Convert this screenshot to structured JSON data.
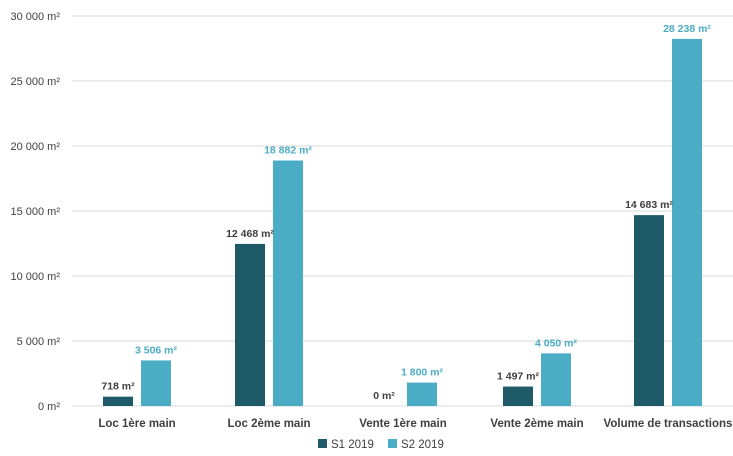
{
  "chart_data": {
    "type": "bar",
    "categories": [
      "Loc 1ère main",
      "Loc 2ème main",
      "Vente 1ère main",
      "Vente 2ème main",
      "Volume de transactions"
    ],
    "series": [
      {
        "name": "S1 2019",
        "values": [
          718,
          12468,
          0,
          1497,
          14683
        ],
        "labels": [
          "718 m²",
          "12 468 m²",
          "0 m²",
          "1 497 m²",
          "14 683 m²"
        ],
        "color": "#1f5a68"
      },
      {
        "name": "S2 2019",
        "values": [
          3506,
          18882,
          1800,
          4050,
          28238
        ],
        "labels": [
          "3 506 m²",
          "18 882 m²",
          "1 800 m²",
          "4 050 m²",
          "28 238 m²"
        ],
        "color": "#4bacc6"
      }
    ],
    "yticks": [
      {
        "value": 0,
        "label": "0 m²"
      },
      {
        "value": 5000,
        "label": "5 000 m²"
      },
      {
        "value": 10000,
        "label": "10 000 m²"
      },
      {
        "value": 15000,
        "label": "15 000 m²"
      },
      {
        "value": 20000,
        "label": "20 000 m²"
      },
      {
        "value": 25000,
        "label": "25 000 m²"
      },
      {
        "value": 30000,
        "label": "30 000 m²"
      }
    ],
    "ylim": [
      0,
      30000
    ],
    "grid": true,
    "legend_position": "bottom",
    "title": "",
    "xlabel": "",
    "ylabel": ""
  },
  "colors": {
    "s1": "#1f5a68",
    "s2": "#4bacc6",
    "grid": "#d9d9d9",
    "text": "#404040"
  }
}
